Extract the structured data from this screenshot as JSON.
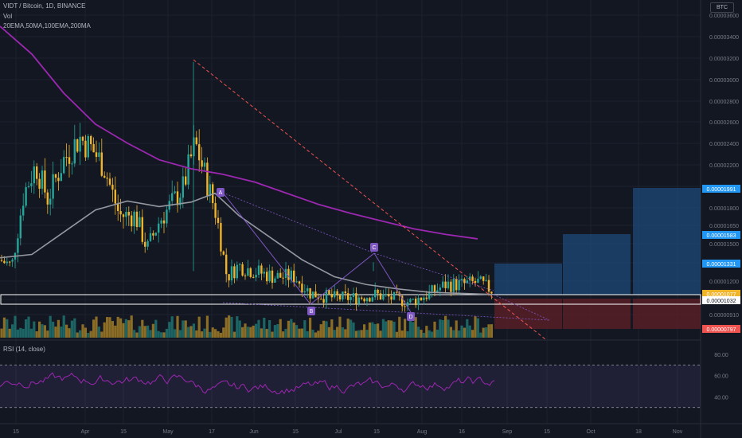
{
  "header": {
    "title": "VIDT / Bitcoin, 1D, BINANCE",
    "vol": "Vol",
    "indicators": "20EMA,50MA,100EMA,200MA",
    "currency": "BTC"
  },
  "colors": {
    "background": "#131722",
    "grid": "#1e222d",
    "bull": "#26a69a",
    "bear": "#f0b429",
    "ma_purple": "#9c27b0",
    "ma_gray": "#9598a1",
    "trend_red": "#ef5350",
    "pattern_purple": "#7e57c2",
    "target_blue": "#1e4a7a",
    "stop_red": "#5c1f28",
    "rsi_line": "#9c27b0"
  },
  "chart_data": [
    {
      "type": "candlestick",
      "name": "price",
      "ylim": [
        7.5e-06,
        3.8e-06
      ],
      "y_ticks": [
        "0.00003600",
        "0.00003400",
        "0.00003200",
        "0.00003000",
        "0.00002800",
        "0.00002600",
        "0.00002400",
        "0.00002200",
        "0.00002000",
        "0.00001800",
        "0.00001650",
        "0.00001500",
        "0.00001350",
        "0.00001200",
        "0.00001050",
        "0.00000910"
      ],
      "x_ticks": [
        "15",
        "Apr",
        "15",
        "May",
        "17",
        "Jun",
        "15",
        "Jul",
        "15",
        "Aug",
        "16",
        "Sep",
        "15",
        "Oct",
        "18",
        "Nov"
      ],
      "ma200_points": [
        [
          0,
          3.5e-05
        ],
        [
          20,
          3.25e-05
        ],
        [
          40,
          2.9e-05
        ],
        [
          60,
          2.62e-05
        ],
        [
          80,
          2.45e-05
        ],
        [
          100,
          2.3e-05
        ],
        [
          120,
          2.22e-05
        ],
        [
          140,
          2.17e-05
        ],
        [
          160,
          2.1e-05
        ],
        [
          180,
          2e-05
        ],
        [
          200,
          1.9e-05
        ],
        [
          220,
          1.82e-05
        ],
        [
          240,
          1.75e-05
        ],
        [
          260,
          1.68e-05
        ],
        [
          280,
          1.63e-05
        ],
        [
          300,
          1.59e-05
        ]
      ],
      "ma50_points": [
        [
          0,
          1.42e-05
        ],
        [
          20,
          1.45e-05
        ],
        [
          40,
          1.65e-05
        ],
        [
          60,
          1.85e-05
        ],
        [
          80,
          1.93e-05
        ],
        [
          100,
          1.88e-05
        ],
        [
          120,
          1.92e-05
        ],
        [
          135,
          2e-05
        ],
        [
          150,
          1.8e-05
        ],
        [
          170,
          1.6e-05
        ],
        [
          190,
          1.4e-05
        ],
        [
          210,
          1.25e-05
        ],
        [
          230,
          1.18e-05
        ],
        [
          250,
          1.14e-05
        ],
        [
          270,
          1.11e-05
        ],
        [
          290,
          1.1e-05
        ],
        [
          310,
          1.09e-05
        ]
      ],
      "patterns": [
        {
          "label": "A",
          "value": 1.94e-05
        },
        {
          "label": "B",
          "value": 1.04e-05
        },
        {
          "label": "C",
          "value": 1.38e-05
        },
        {
          "label": "D",
          "value": 1e-05
        }
      ],
      "price_labels": [
        {
          "value": "0.00001991",
          "color": "#2196f3"
        },
        {
          "value": "0.00001583",
          "color": "#2196f3"
        },
        {
          "value": "0.00001331",
          "color": "#2196f3"
        },
        {
          "value": "0.00001077",
          "color": "#f0b429"
        },
        {
          "value": "0.00001032",
          "color": "#ffffff"
        },
        {
          "value": "0.00000797",
          "color": "#ef5350"
        }
      ]
    },
    {
      "type": "line",
      "name": "RSI (14, close)",
      "title": "RSI (14, close)",
      "ylim": [
        20,
        80
      ],
      "y_ticks": [
        "80.00",
        "60.00",
        "40.00"
      ],
      "levels": [
        70,
        30
      ]
    }
  ]
}
